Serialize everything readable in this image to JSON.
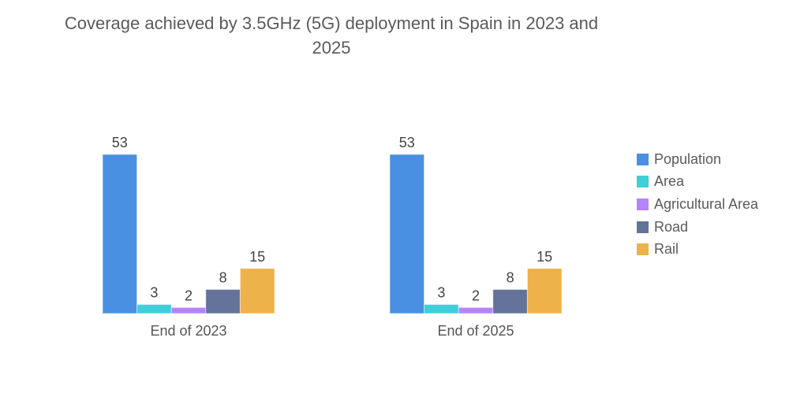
{
  "chart_data": {
    "type": "bar",
    "title": "Coverage achieved by 3.5GHz (5G) deployment in Spain in 2023 and 2025",
    "categories": [
      "End of 2023",
      "End of 2025"
    ],
    "series": [
      {
        "name": "Population",
        "color": "#4a90e2",
        "values": [
          53,
          53
        ]
      },
      {
        "name": "Area",
        "color": "#3ecfd9",
        "values": [
          3,
          3
        ]
      },
      {
        "name": "Agricultural Area",
        "color": "#b384fb",
        "values": [
          2,
          2
        ]
      },
      {
        "name": "Road",
        "color": "#637399",
        "values": [
          8,
          8
        ]
      },
      {
        "name": "Rail",
        "color": "#edb249",
        "values": [
          15,
          15
        ]
      }
    ],
    "xlabel": "",
    "ylabel": "",
    "ylim": [
      0,
      53
    ],
    "grid": false,
    "legend": "right",
    "data_labels": true
  }
}
